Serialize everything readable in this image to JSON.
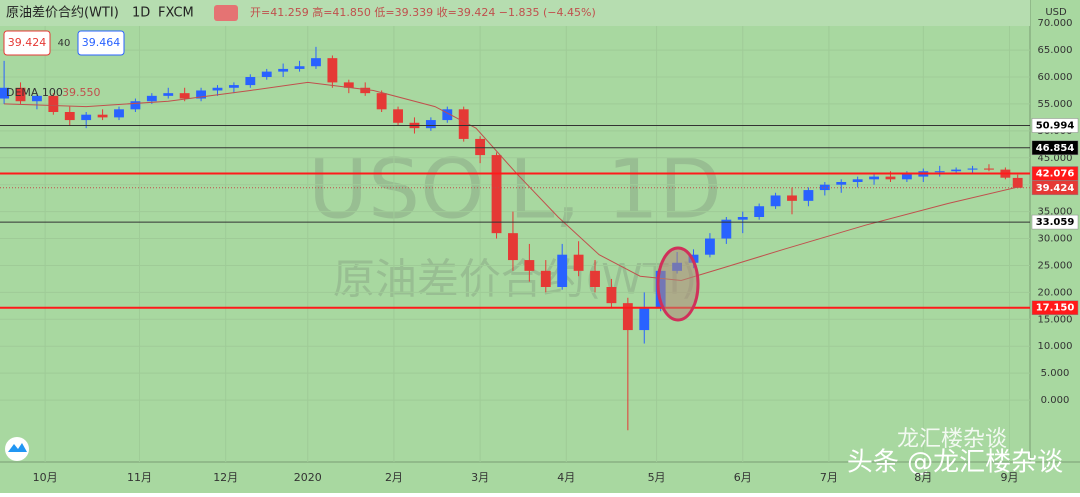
{
  "chart_data": {
    "type": "candlestick",
    "title": "原油差价合约(WTI)",
    "interval": "1D",
    "source": "FXCM",
    "quote": "开=41.259 高=41.850 低=39.339 收=39.424 −1.835 (−4.45%)",
    "sell_price": "39.424",
    "spread": "40",
    "buy_price": "39.464",
    "currency": "USD",
    "watermark_symbol": "USOIL, 1D",
    "watermark_name": "原油差价合约(WTI)",
    "credit_large": "头条 @龙汇楼杂谈",
    "credit_small": "龙汇楼杂谈",
    "up_color": "#2962ff",
    "down_color": "#e53935",
    "x": [
      -10,
      -6,
      -2,
      2,
      6,
      10,
      14,
      18,
      22,
      26,
      30,
      34,
      38,
      42,
      46,
      50,
      54,
      58,
      62,
      66,
      70,
      74,
      78,
      82,
      86,
      90,
      94,
      98,
      102,
      106,
      110,
      114,
      118,
      122,
      126,
      130,
      134,
      138,
      142,
      146,
      150,
      154,
      158,
      162,
      166,
      170,
      174,
      178,
      182,
      186,
      190,
      194,
      198,
      202,
      206,
      210,
      214,
      218,
      222,
      226,
      230,
      234,
      237
    ],
    "open": [
      56,
      58,
      55.5,
      56.5,
      53.5,
      52,
      53,
      52.5,
      54,
      55.5,
      56.5,
      57,
      56,
      57.5,
      58,
      58.5,
      60,
      61,
      61.5,
      62,
      63.5,
      59,
      58,
      57,
      54,
      51.5,
      50.5,
      52,
      54,
      48.5,
      45.5,
      31,
      26,
      24,
      21,
      27,
      24,
      21,
      18,
      13,
      17,
      24,
      25.5,
      27,
      30,
      33.5,
      34,
      36,
      38,
      37,
      39,
      40,
      40.5,
      41,
      41.5,
      41,
      41.5,
      42.5,
      42.5,
      42.8,
      43,
      42.8,
      41.259
    ],
    "high": [
      63,
      59,
      57,
      57,
      54.5,
      53.5,
      54,
      54.5,
      56,
      57,
      58,
      58,
      58,
      58.5,
      59,
      60.5,
      61.5,
      62.5,
      63,
      65.6,
      64,
      59.5,
      59,
      57.5,
      54.5,
      52.5,
      52.5,
      54.5,
      54.5,
      49,
      46,
      35,
      29,
      26,
      29,
      29.5,
      26,
      22.5,
      19,
      20,
      25,
      27.5,
      28,
      31,
      34,
      35,
      36.5,
      38.5,
      39.5,
      39.5,
      40.5,
      41,
      41.5,
      42,
      42.5,
      42.5,
      43,
      43.5,
      43.2,
      43.5,
      43.8,
      43.2,
      41.85
    ],
    "low": [
      55,
      55,
      54,
      53,
      51,
      50.5,
      52,
      52,
      53.5,
      55,
      56,
      55.5,
      55.5,
      56.5,
      57,
      58,
      59.5,
      60,
      61,
      61.5,
      58,
      57,
      56.5,
      53.5,
      51,
      49.5,
      50,
      51.5,
      48,
      44,
      30,
      24,
      22,
      20,
      20.5,
      23,
      20,
      17,
      -5.6,
      10.5,
      16.5,
      23.5,
      24.5,
      26.5,
      29,
      31,
      33.5,
      35.5,
      34.5,
      36,
      38,
      38.5,
      39.5,
      40,
      40.5,
      40.5,
      40.5,
      41.5,
      42,
      42.2,
      42.5,
      41,
      39.339
    ],
    "close": [
      58,
      55.5,
      56.5,
      53.5,
      52,
      53,
      52.5,
      54,
      55.5,
      56.5,
      57,
      56,
      57.5,
      58,
      58.5,
      60,
      61,
      61.5,
      62,
      63.5,
      59,
      58,
      57,
      54,
      51.5,
      50.5,
      52,
      54,
      48.5,
      45.5,
      31,
      26,
      24,
      21,
      27,
      24,
      21,
      18,
      13,
      17,
      24,
      25.5,
      27,
      30,
      33.5,
      34,
      36,
      38,
      37,
      39,
      40,
      40.5,
      41,
      41.5,
      41,
      42,
      42.5,
      42.5,
      42.8,
      43,
      42.8,
      41.3,
      39.424
    ],
    "dema": {
      "name": "DEMA 100",
      "value_label": "39.550",
      "color": "#c0504d",
      "x": [
        -10,
        10,
        30,
        50,
        64,
        80,
        95,
        105,
        115,
        125,
        135,
        145,
        155,
        165,
        180,
        200,
        220,
        237
      ],
      "values": [
        55,
        54.5,
        55.5,
        57.5,
        59,
        57.5,
        54.5,
        50.5,
        42,
        34,
        27,
        23,
        22.2,
        24.5,
        28,
        32.5,
        36.5,
        39.55
      ]
    },
    "levels": [
      {
        "value": 50.994,
        "color": "#333333",
        "tag_bg": "#ffffff",
        "tag_color": "#000000"
      },
      {
        "value": 46.854,
        "color": "#333333",
        "tag_bg": "#000000",
        "tag_color": "#ffffff"
      },
      {
        "value": 42.076,
        "color": "#ff1a1a",
        "tag_bg": "#ff1a1a",
        "tag_color": "#ffffff"
      },
      {
        "value": 39.424,
        "color": "#c0504d",
        "tag_bg": "#e53935",
        "tag_color": "#ffffff"
      },
      {
        "value": 33.059,
        "color": "#333333",
        "tag_bg": "#ffffff",
        "tag_color": "#000000"
      },
      {
        "value": 17.15,
        "label": "17.150",
        "color": "#ff1a1a",
        "tag_bg": "#ff1a1a",
        "tag_color": "#ffffff"
      }
    ],
    "xlim": [
      -11,
      240
    ],
    "ylim": [
      -11.5,
      74.3
    ],
    "yticks": [
      {
        "value": 0,
        "label": "0.000"
      },
      {
        "value": 5,
        "label": "5.000"
      },
      {
        "value": 10,
        "label": "10.000"
      },
      {
        "value": 15,
        "label": "15.000"
      },
      {
        "value": 20,
        "label": "20.000"
      },
      {
        "value": 25,
        "label": "25.000"
      },
      {
        "value": 30,
        "label": "30.000"
      },
      {
        "value": 35,
        "label": "35.000"
      },
      {
        "value": 40,
        "label": "40.000"
      },
      {
        "value": 45,
        "label": "45.000"
      },
      {
        "value": 50,
        "label": "50.000"
      },
      {
        "value": 55,
        "label": "55.000"
      },
      {
        "value": 60,
        "label": "60.000"
      },
      {
        "value": 65,
        "label": "65.000"
      },
      {
        "value": 70,
        "label": "70.000"
      }
    ],
    "xticks": [
      {
        "value": 0,
        "label": "10月"
      },
      {
        "value": 23,
        "label": "11月"
      },
      {
        "value": 44,
        "label": "12月"
      },
      {
        "value": 64,
        "label": "2020"
      },
      {
        "value": 85,
        "label": "2月"
      },
      {
        "value": 106,
        "label": "3月"
      },
      {
        "value": 127,
        "label": "4月"
      },
      {
        "value": 149,
        "label": "5月"
      },
      {
        "value": 170,
        "label": "6月"
      },
      {
        "value": 191,
        "label": "7月"
      },
      {
        "value": 214,
        "label": "8月"
      },
      {
        "value": 235,
        "label": "9月"
      }
    ]
  }
}
